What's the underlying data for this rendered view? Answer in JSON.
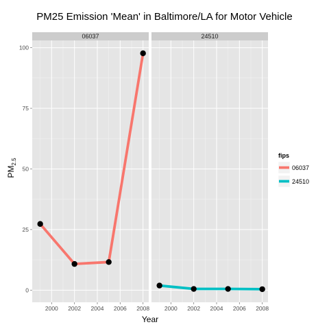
{
  "chart_data": {
    "type": "line",
    "title": "PM25 Emission 'Mean' in Baltimore/LA for Motor Vehicle",
    "xlabel": "Year",
    "ylabel_main": "PM",
    "ylabel_sub": "2.5",
    "xlim": [
      1998.3,
      2008.5
    ],
    "ylim": [
      -5,
      103
    ],
    "x_ticks": [
      2000,
      2002,
      2004,
      2006,
      2008
    ],
    "y_ticks": [
      0,
      25,
      50,
      75,
      100
    ],
    "grid": true,
    "facet_by": "fips",
    "legend_title": "fips",
    "legend_position": "right",
    "series": [
      {
        "name": "06037",
        "color": "#F8766D",
        "x": [
          1999,
          2002,
          2005,
          2008
        ],
        "values": [
          27.3,
          10.8,
          11.6,
          97.7
        ]
      },
      {
        "name": "24510",
        "color": "#00BFC4",
        "x": [
          1999,
          2002,
          2005,
          2008
        ],
        "values": [
          1.9,
          0.5,
          0.5,
          0.4
        ]
      }
    ]
  }
}
